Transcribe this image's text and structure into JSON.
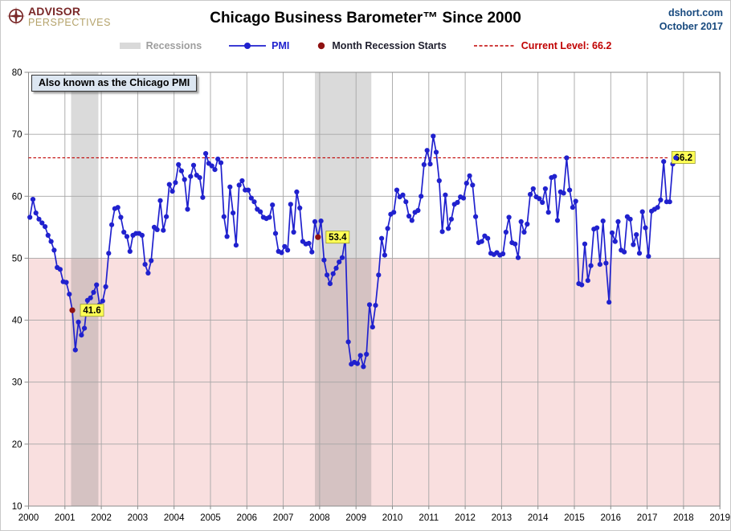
{
  "header": {
    "logo_line1": "ADVISOR",
    "logo_line2": "PERSPECTIVES",
    "title": "Chicago Business Barometer™ Since 2000",
    "source": "dshort.com",
    "date": "October 2017"
  },
  "legend": [
    {
      "key": "recessions",
      "label": "Recessions",
      "type": "band",
      "color": "#d9d9d9",
      "text_color": "#9e9e9e"
    },
    {
      "key": "pmi",
      "label": "PMI",
      "type": "line-dot",
      "color": "#2021ce",
      "text_color": "#2021ce"
    },
    {
      "key": "recession-start",
      "label": "Month Recession Starts",
      "type": "dot",
      "color": "#8f1212",
      "text_color": "#1f1f2e"
    },
    {
      "key": "current-level",
      "label": "Current Level: 66.2",
      "type": "dash",
      "color": "#c00000",
      "text_color": "#c00000"
    }
  ],
  "annotations": {
    "tooltip": "Also known as the Chicago PMI"
  },
  "chart_data": {
    "type": "line",
    "title": "Chicago Business Barometer™ Since 2000",
    "series_name": "PMI",
    "frequency": "monthly",
    "start": "2000-01",
    "end": "2017-10",
    "x_min": 2000,
    "x_max": 2019,
    "ylim": [
      10,
      80
    ],
    "y_ticks": [
      10,
      20,
      30,
      40,
      50,
      60,
      70,
      80
    ],
    "x_ticks": [
      2000,
      2001,
      2002,
      2003,
      2004,
      2005,
      2006,
      2007,
      2008,
      2009,
      2010,
      2011,
      2012,
      2013,
      2014,
      2015,
      2016,
      2017,
      2018,
      2019
    ],
    "grid": true,
    "values": [
      56.6,
      59.5,
      57.3,
      56.3,
      55.7,
      55.1,
      53.7,
      52.7,
      51.3,
      48.5,
      48.2,
      46.2,
      46.1,
      44.2,
      41.6,
      35.2,
      39.7,
      37.6,
      38.7,
      43.2,
      43.6,
      44.5,
      45.7,
      42.5,
      43.1,
      45.4,
      50.8,
      55.4,
      58.0,
      58.2,
      56.6,
      54.2,
      53.5,
      51.1,
      53.7,
      54.0,
      54.0,
      53.7,
      49.0,
      47.6,
      49.6,
      55.0,
      54.6,
      59.3,
      54.5,
      56.7,
      61.9,
      60.8,
      62.2,
      65.1,
      64.1,
      62.7,
      57.9,
      63.2,
      65.0,
      63.4,
      63.0,
      59.8,
      66.9,
      65.3,
      64.9,
      64.3,
      66.0,
      65.4,
      56.7,
      53.5,
      61.5,
      57.3,
      52.1,
      61.8,
      62.5,
      61.0,
      61.0,
      59.7,
      59.1,
      57.9,
      57.5,
      56.6,
      56.4,
      56.6,
      58.6,
      54.0,
      51.1,
      50.9,
      51.9,
      51.3,
      58.7,
      54.2,
      60.7,
      58.1,
      52.7,
      52.3,
      52.4,
      51.0,
      55.9,
      53.4,
      56.0,
      49.7,
      47.3,
      45.9,
      47.5,
      48.4,
      49.4,
      50.1,
      53.2,
      36.5,
      32.9,
      33.2,
      33.0,
      34.3,
      32.5,
      34.5,
      42.5,
      38.9,
      42.4,
      47.3,
      53.2,
      50.5,
      54.8,
      57.1,
      57.4,
      61.0,
      59.9,
      60.2,
      59.1,
      56.8,
      56.1,
      57.4,
      57.7,
      60.0,
      65.1,
      67.4,
      65.2,
      69.7,
      67.1,
      62.5,
      54.3,
      60.2,
      54.8,
      56.3,
      58.7,
      59.0,
      59.9,
      59.7,
      62.1,
      63.3,
      61.8,
      56.7,
      52.5,
      52.7,
      53.6,
      53.2,
      50.8,
      50.6,
      50.9,
      50.5,
      50.7,
      54.2,
      56.6,
      52.5,
      52.3,
      50.1,
      55.9,
      54.2,
      55.5,
      60.3,
      61.2,
      59.9,
      59.6,
      59.0,
      61.2,
      57.4,
      63.0,
      63.2,
      56.1,
      60.7,
      60.5,
      66.2,
      61.0,
      58.2,
      59.2,
      45.9,
      45.7,
      52.3,
      46.4,
      48.8,
      54.7,
      54.9,
      49.0,
      56.0,
      49.2,
      42.9,
      54.1,
      52.7,
      55.9,
      51.3,
      51.0,
      56.7,
      56.3,
      52.2,
      53.8,
      50.8,
      57.5,
      54.9,
      50.3,
      57.6,
      57.9,
      58.2,
      59.4,
      65.6,
      59.1,
      59.1,
      65.2,
      66.2
    ],
    "current_level": 66.2,
    "current_level_label": "66.2",
    "recessions": [
      {
        "start": 2001.17,
        "end": 2001.92
      },
      {
        "start": 2007.87,
        "end": 2009.42
      }
    ],
    "recession_start_markers": [
      {
        "date": "2001-03",
        "value": 41.6,
        "label": "41.6"
      },
      {
        "date": "2007-12",
        "value": 53.4,
        "label": "53.4"
      }
    ],
    "below_threshold_region": {
      "threshold": 50,
      "color": "#f9dfdf"
    },
    "colors": {
      "line": "#2021ce",
      "marker": "#2021ce",
      "recession_band": "#d9d9d9",
      "grid": "#a6a6a6",
      "frame": "#8c8c8c",
      "current_level": "#c00000",
      "recession_start_marker": "#8f1212",
      "value_label_bg": "#ffff55",
      "value_label_border": "#9a9a30"
    }
  }
}
